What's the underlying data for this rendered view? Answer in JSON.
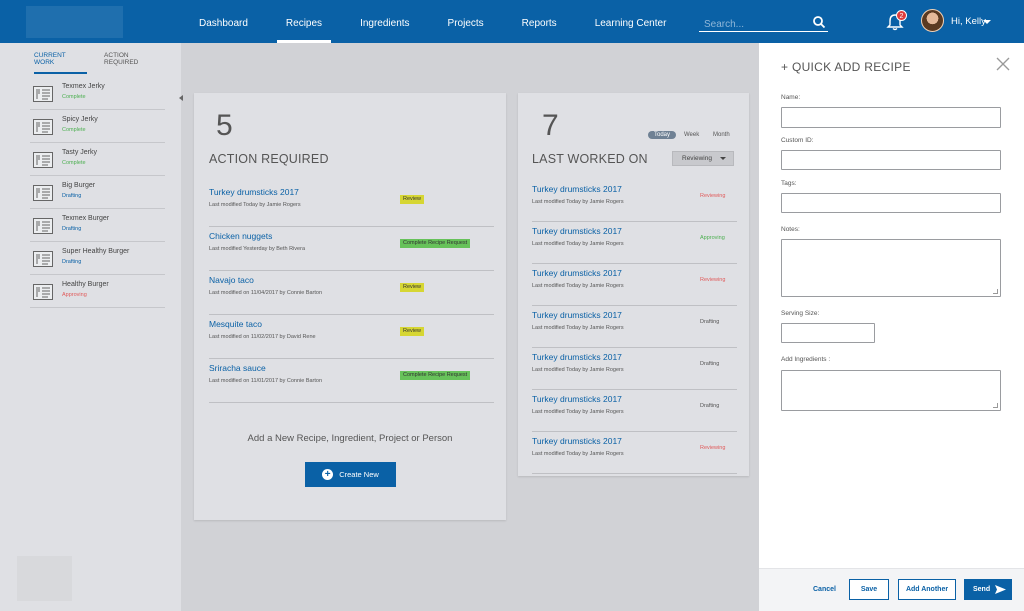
{
  "nav": {
    "items": [
      {
        "label": "Dashboard",
        "active": false
      },
      {
        "label": "Recipes",
        "active": true
      },
      {
        "label": "Ingredients",
        "active": false
      },
      {
        "label": "Projects",
        "active": false
      },
      {
        "label": "Reports",
        "active": false
      },
      {
        "label": "Learning Center",
        "active": false
      }
    ],
    "search_placeholder": "Search...",
    "notification_count": "2",
    "user_greeting": "Hi, Kelly"
  },
  "sidebar": {
    "tabs": [
      "CURRENT WORK",
      "ACTION REQUIRED"
    ],
    "items": [
      {
        "name": "Texmex Jerky",
        "status": "Complete",
        "status_color": "#4caf50"
      },
      {
        "name": "Spicy Jerky",
        "status": "Complete",
        "status_color": "#4caf50"
      },
      {
        "name": "Tasty Jerky",
        "status": "Complete",
        "status_color": "#4caf50"
      },
      {
        "name": "Big Burger",
        "status": "Drafting",
        "status_color": "#0a61a6"
      },
      {
        "name": "Texmex Burger",
        "status": "Drafting",
        "status_color": "#0a61a6"
      },
      {
        "name": "Super Healthy Burger",
        "status": "Drafting",
        "status_color": "#0a61a6"
      },
      {
        "name": "Healthy Burger",
        "status": "Approving",
        "status_color": "#e05a5a"
      }
    ]
  },
  "action_required": {
    "count": "5",
    "title": "ACTION REQUIRED",
    "items": [
      {
        "name": "Turkey drumsticks 2017",
        "modified": "Last modified Today by Jamie Rogers",
        "tag": "Review",
        "tag_type": "yellow"
      },
      {
        "name": "Chicken nuggets",
        "modified": "Last modified Yesterday by Beth Rivera",
        "tag": "Complete Recipe Request",
        "tag_type": "green"
      },
      {
        "name": "Navajo taco",
        "modified": "Last modified on 11/04/2017 by Connie Barton",
        "tag": "Review",
        "tag_type": "yellow"
      },
      {
        "name": "Mesquite taco",
        "modified": "Last modified on 11/02/2017 by David Rene",
        "tag": "Review",
        "tag_type": "yellow"
      },
      {
        "name": "Sriracha sauce",
        "modified": "Last modified on 11/01/2017 by Connie Barton",
        "tag": "Complete Recipe Request",
        "tag_type": "green"
      }
    ],
    "add_prompt": "Add a New Recipe, Ingredient, Project or Person",
    "create_label": "Create New"
  },
  "last_worked": {
    "count": "7",
    "title": "LAST WORKED ON",
    "periods": [
      "Today",
      "Week",
      "Month"
    ],
    "active_period": "Today",
    "filter": "Reviewing",
    "items": [
      {
        "name": "Turkey drumsticks 2017",
        "modified": "Last modified Today by Jamie Rogers",
        "status": "Reviewing",
        "status_color": "#e05a5a"
      },
      {
        "name": "Turkey drumsticks 2017",
        "modified": "Last modified Today by Jamie Rogers",
        "status": "Approving",
        "status_color": "#4caf50"
      },
      {
        "name": "Turkey drumsticks 2017",
        "modified": "Last modified Today by Jamie Rogers",
        "status": "Reviewing",
        "status_color": "#e05a5a"
      },
      {
        "name": "Turkey drumsticks 2017",
        "modified": "Last modified Today by Jamie Rogers",
        "status": "Drafting",
        "status_color": "#555555"
      },
      {
        "name": "Turkey drumsticks 2017",
        "modified": "Last modified Today by Jamie Rogers",
        "status": "Drafting",
        "status_color": "#555555"
      },
      {
        "name": "Turkey drumsticks 2017",
        "modified": "Last modified Today by Jamie Rogers",
        "status": "Drafting",
        "status_color": "#555555"
      },
      {
        "name": "Turkey drumsticks 2017",
        "modified": "Last modified Today by Jamie Rogers",
        "status": "Reviewing",
        "status_color": "#e05a5a"
      }
    ]
  },
  "quick_add": {
    "title": "+ QUICK ADD RECIPE",
    "fields": {
      "name": "Name:",
      "custom_id": "Custom ID:",
      "tags": "Tags:",
      "notes": "Notes:",
      "serving_size": "Serving Size:",
      "ingredients": "Add Ingredients :"
    },
    "buttons": {
      "cancel": "Cancel",
      "save": "Save",
      "add_another": "Add Another",
      "send": "Send"
    }
  },
  "colors": {
    "brand_blue": "#0a61a6",
    "tag_yellow": "#d6d633",
    "tag_green": "#67c25a"
  }
}
